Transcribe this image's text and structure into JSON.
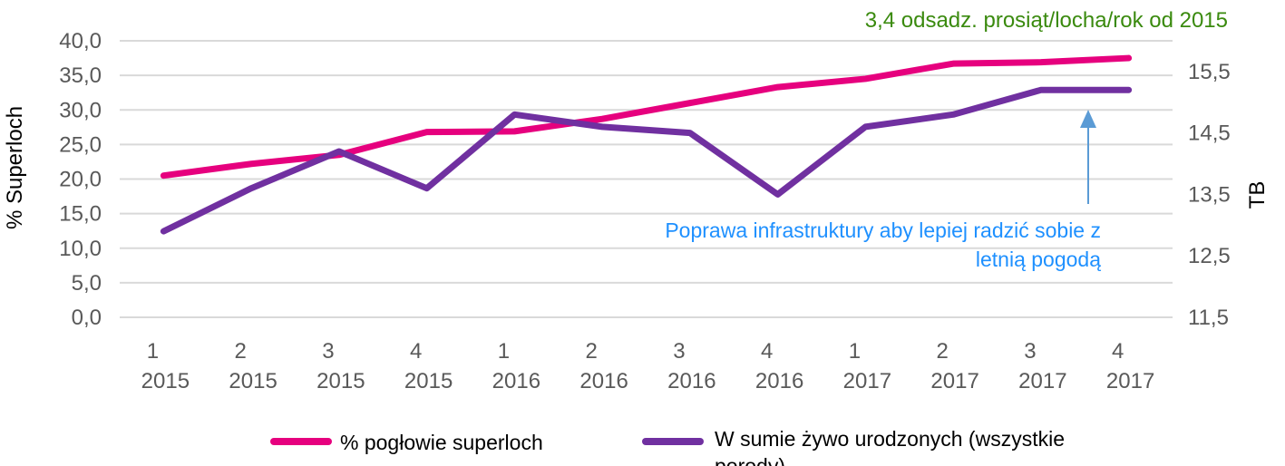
{
  "chart_data": {
    "type": "line",
    "title": "",
    "categories": [
      [
        "1",
        "2015"
      ],
      [
        "2",
        "2015"
      ],
      [
        "3",
        "2015"
      ],
      [
        "4",
        "2015"
      ],
      [
        "1",
        "2016"
      ],
      [
        "2",
        "2016"
      ],
      [
        "3",
        "2016"
      ],
      [
        "4",
        "2016"
      ],
      [
        "1",
        "2017"
      ],
      [
        "2",
        "2017"
      ],
      [
        "3",
        "2017"
      ],
      [
        "4",
        "2017"
      ]
    ],
    "ylabel": "% Superloch",
    "y2label": "TB",
    "ylim": [
      0,
      40
    ],
    "yticks": [
      "0,0",
      "5,0",
      "10,0",
      "15,0",
      "20,0",
      "25,0",
      "30,0",
      "35,0",
      "40,0"
    ],
    "y2lim": [
      11.5,
      16.0
    ],
    "y2ticks": [
      "11,5",
      "12,5",
      "13,5",
      "14,5",
      "15,5"
    ],
    "grid": true,
    "legend_placement": "bottom",
    "series": [
      {
        "name": "% pogłowie superloch",
        "axis": "left",
        "color": "#E6007E",
        "values": [
          20.5,
          22.2,
          23.5,
          26.8,
          26.9,
          28.7,
          31.0,
          33.3,
          34.5,
          36.7,
          36.9,
          37.5
        ]
      },
      {
        "name": "W sumie żywo urodzonych (wszystkie porody)",
        "axis": "right",
        "color": "#7030A0",
        "name_lines": [
          "W sumie żywo urodzonych (wszystkie",
          "porody)"
        ],
        "values": [
          12.9,
          13.6,
          14.2,
          13.6,
          14.8,
          14.6,
          14.5,
          13.5,
          14.6,
          14.8,
          15.2,
          15.2
        ]
      }
    ],
    "annotations": [
      {
        "text": "3,4 odsadz. prosiąt/locha/rok od 2015",
        "color": "#3A8A0E"
      },
      {
        "text_lines": [
          "Poprawa infrastruktury aby lepiej radzić sobie z",
          "letnią pogodą"
        ],
        "color": "#1E90FF",
        "arrow_color": "#5B9BD5",
        "arrow_points_to_category": 11
      }
    ]
  }
}
